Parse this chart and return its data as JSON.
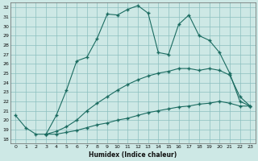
{
  "xlabel": "Humidex (Indice chaleur)",
  "background_color": "#cde8e5",
  "grid_color": "#8bbfbf",
  "line_color": "#1a6b60",
  "xlim": [
    -0.5,
    23.5
  ],
  "ylim": [
    17.5,
    32.5
  ],
  "xticks": [
    0,
    1,
    2,
    3,
    4,
    5,
    6,
    7,
    8,
    9,
    10,
    11,
    12,
    13,
    14,
    15,
    16,
    17,
    18,
    19,
    20,
    21,
    22,
    23
  ],
  "yticks": [
    18,
    19,
    20,
    21,
    22,
    23,
    24,
    25,
    26,
    27,
    28,
    29,
    30,
    31,
    32
  ],
  "line1_x": [
    0,
    1,
    2,
    3,
    4,
    5,
    6,
    7,
    8,
    9,
    10,
    11,
    12,
    13,
    14,
    15,
    16,
    17,
    18,
    19,
    20,
    21,
    22,
    23
  ],
  "line1_y": [
    20.5,
    19.2,
    18.5,
    18.5,
    20.5,
    23.2,
    26.3,
    26.7,
    28.7,
    31.3,
    31.2,
    31.8,
    32.2,
    31.4,
    27.2,
    27.0,
    30.2,
    31.2,
    29.0,
    28.5,
    27.2,
    25.0,
    22.0,
    21.5
  ],
  "line2_x": [
    3,
    4,
    5,
    6,
    7,
    8,
    9,
    10,
    11,
    12,
    13,
    14,
    15,
    16,
    17,
    18,
    19,
    20,
    21,
    22,
    23
  ],
  "line2_y": [
    18.5,
    18.8,
    19.3,
    20.0,
    21.0,
    21.8,
    22.5,
    23.2,
    23.8,
    24.3,
    24.7,
    25.0,
    25.2,
    25.5,
    25.5,
    25.3,
    25.5,
    25.3,
    24.8,
    22.5,
    21.5
  ],
  "line3_x": [
    3,
    4,
    5,
    6,
    7,
    8,
    9,
    10,
    11,
    12,
    13,
    14,
    15,
    16,
    17,
    18,
    19,
    20,
    21,
    22,
    23
  ],
  "line3_y": [
    18.5,
    18.5,
    18.7,
    18.9,
    19.2,
    19.5,
    19.7,
    20.0,
    20.2,
    20.5,
    20.8,
    21.0,
    21.2,
    21.4,
    21.5,
    21.7,
    21.8,
    22.0,
    21.8,
    21.5,
    21.5
  ]
}
